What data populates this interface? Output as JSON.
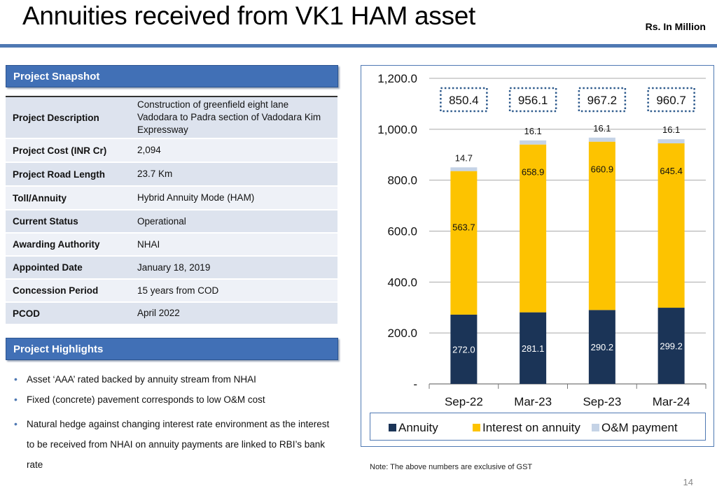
{
  "header": {
    "title": "Annuities received from VK1 HAM asset",
    "units": "Rs. In  Million"
  },
  "snapshot": {
    "heading": "Project Snapshot",
    "rows": [
      {
        "label": "Project Description",
        "value": "Construction of greenfield eight lane Vadodara to Padra section of Vadodara Kim Expressway"
      },
      {
        "label": "Project Cost (INR Cr)",
        "value": "2,094"
      },
      {
        "label": "Project Road Length",
        "value": "23.7 Km"
      },
      {
        "label": "Toll/Annuity",
        "value": "Hybrid Annuity Mode (HAM)"
      },
      {
        "label": "Current Status",
        "value": "Operational"
      },
      {
        "label": "Awarding Authority",
        "value": "NHAI"
      },
      {
        "label": "Appointed Date",
        "value": "January 18, 2019"
      },
      {
        "label": "Concession Period",
        "value": "15 years from COD"
      },
      {
        "label": "PCOD",
        "value": "April 2022"
      }
    ]
  },
  "highlights": {
    "heading": "Project Highlights",
    "items": [
      "Asset ‘AAA’ rated backed by annuity stream from NHAI",
      "Fixed (concrete) pavement corresponds to low O&M cost",
      "Natural hedge against changing interest rate environment as the interest to be received from NHAI on annuity payments are linked to RBI’s bank rate"
    ]
  },
  "chart_data": {
    "type": "bar",
    "stacked": true,
    "categories": [
      "Sep-22",
      "Mar-23",
      "Sep-23",
      "Mar-24"
    ],
    "series": [
      {
        "name": "Annuity",
        "color": "#1b3457",
        "values": [
          272.0,
          281.1,
          290.2,
          299.2
        ],
        "labels": [
          "272.0",
          "281.1",
          "290.2",
          "299.2"
        ]
      },
      {
        "name": "Interest on annuity",
        "color": "#fdc300",
        "values": [
          563.7,
          658.9,
          660.9,
          645.4
        ],
        "labels": [
          "563.7",
          "658.9",
          "660.9",
          "645.4"
        ]
      },
      {
        "name": "O&M payment",
        "color": "#c5d3e6",
        "values": [
          14.7,
          16.1,
          16.1,
          16.1
        ],
        "labels": [
          "14.7",
          "16.1",
          "16.1",
          "16.1"
        ]
      }
    ],
    "totals": [
      "850.4",
      "956.1",
      "967.2",
      "960.7"
    ],
    "ylim": [
      0,
      1200
    ],
    "yticks": [
      0,
      200,
      400,
      600,
      800,
      1000,
      1200
    ],
    "ytick_labels": [
      "-",
      "200.0",
      "400.0",
      "600.0",
      "800.0",
      "1,000.0",
      "1,200.0"
    ],
    "grid": true,
    "legend": "bottom"
  },
  "note": "Note: The above numbers are exclusive of GST",
  "page_number": "14"
}
